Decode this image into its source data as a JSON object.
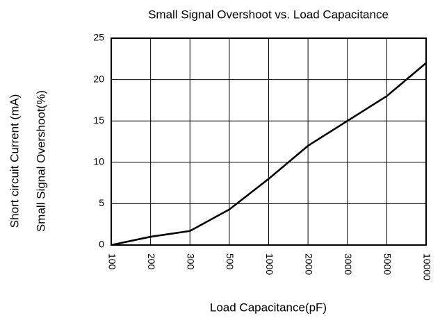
{
  "chart_data": {
    "type": "line",
    "title": "Small Signal Overshoot vs. Load Capacitance",
    "x_label": "Load Capacitance(pF)",
    "y_labels": [
      "Short circuit Current (mA)",
      "Small Signal Overshoot(%)"
    ],
    "categories": [
      "100",
      "200",
      "300",
      "500",
      "1000",
      "2000",
      "3000",
      "5000",
      "10000"
    ],
    "series": [
      {
        "name": "Small Signal Overshoot",
        "color": "#000000",
        "values": [
          0,
          1.0,
          1.7,
          4.3,
          8.0,
          12.0,
          15.0,
          18.0,
          22.0
        ]
      }
    ],
    "ylim": [
      0,
      25
    ],
    "yticks": [
      0,
      5,
      10,
      15,
      20,
      25
    ],
    "grid": true
  }
}
